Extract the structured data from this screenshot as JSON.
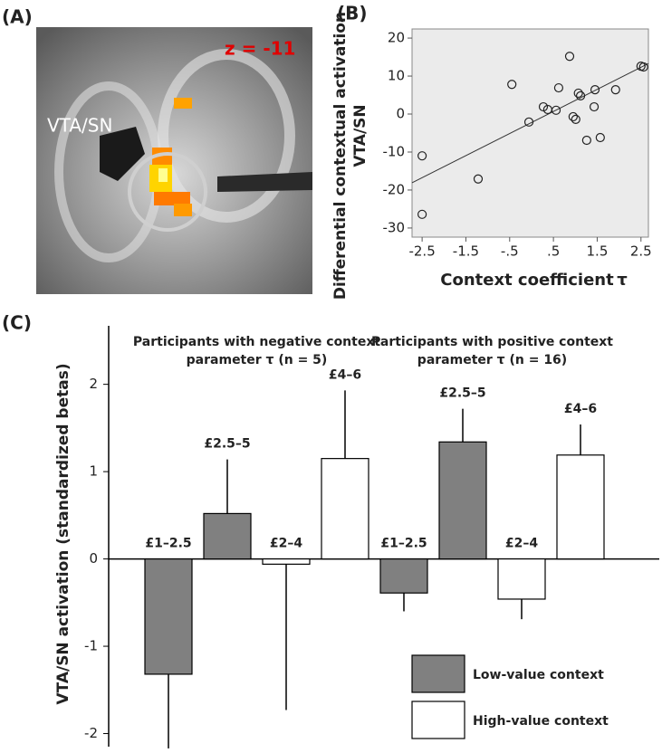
{
  "panel_labels": [
    "(A)",
    "(B)",
    "(C)"
  ],
  "brain_image": {
    "region": "VTA/SN",
    "slice": "z = -11"
  },
  "chart_data": [
    {
      "type": "scatter",
      "ylabel": [
        "Differential contextual activation",
        "VTA/SN"
      ],
      "xlabel": "Context coefficient",
      "xlabel_symbol": "τ",
      "xlim": [
        -2.73,
        2.67
      ],
      "ylim": [
        -32.4,
        22.4
      ],
      "xticks": [
        -2.5,
        -1.5,
        {
          "value": -0.5,
          "label": "-.5"
        },
        {
          "value": 0.5,
          "label": ".5"
        },
        1.5,
        2.5
      ],
      "yticks": [
        20,
        10,
        0,
        -10,
        -20,
        -30
      ],
      "background": "#ebebeb",
      "x": [
        -2.5,
        -2.5,
        -1.22,
        -0.45,
        -0.06,
        0.27,
        0.37,
        0.56,
        0.62,
        0.87,
        1.07,
        1.12,
        1.01,
        0.95,
        1.26,
        1.45,
        1.43,
        1.57,
        1.92,
        2.5,
        2.56
      ],
      "y": [
        -11,
        -26.4,
        -17.1,
        7.8,
        -2.1,
        1.9,
        1.2,
        1.0,
        6.9,
        15.2,
        5.5,
        4.8,
        -1.4,
        -0.7,
        -6.9,
        6.4,
        1.9,
        -6.2,
        6.4,
        12.6,
        12.4
      ],
      "fit_line": {
        "x": [
          -2.73,
          2.67
        ],
        "y": [
          -18.1,
          13.3
        ]
      }
    },
    {
      "type": "bar",
      "ylabel": "VTA/SN activation (standardized betas)",
      "ylim": [
        -2.15,
        2.67
      ],
      "yticks": [
        2,
        1,
        0,
        -1,
        -2
      ],
      "series": [
        {
          "name": "Low-value context",
          "color": "#808080"
        },
        {
          "name": "High-value context",
          "color": "#ffffff"
        }
      ],
      "groups": [
        {
          "title": [
            "Participants with negative context",
            "parameter τ (n = 5)"
          ],
          "bars": [
            {
              "label": "£1–2.5",
              "series": 0,
              "value": -1.32,
              "error": 0.85
            },
            {
              "label": "£2.5–5",
              "series": 0,
              "value": 0.52,
              "error": 0.62
            },
            {
              "label": "£2–4",
              "series": 1,
              "value": -0.06,
              "error": 1.67
            },
            {
              "label": "£4–6",
              "series": 1,
              "value": 1.15,
              "error": 0.78
            }
          ]
        },
        {
          "title": [
            "Participants with positive context",
            "parameter τ (n = 16)"
          ],
          "bars": [
            {
              "label": "£1–2.5",
              "series": 0,
              "value": -0.39,
              "error": 0.21
            },
            {
              "label": "£2.5–5",
              "series": 0,
              "value": 1.34,
              "error": 0.38
            },
            {
              "label": "£2–4",
              "series": 1,
              "value": -0.46,
              "error": 0.23
            },
            {
              "label": "£4–6",
              "series": 1,
              "value": 1.19,
              "error": 0.35
            }
          ]
        }
      ]
    }
  ]
}
